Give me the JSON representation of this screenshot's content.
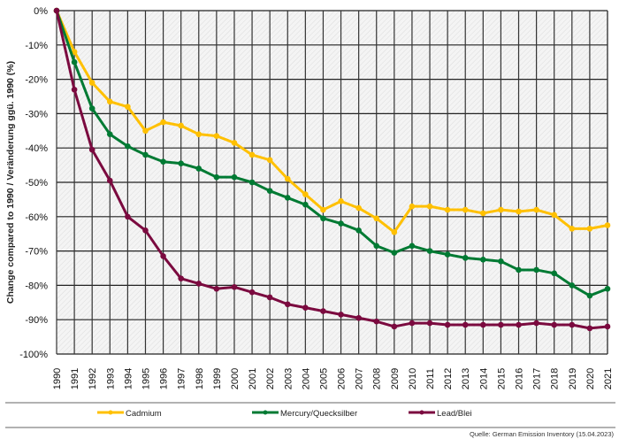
{
  "chart_data": {
    "type": "line",
    "ylabel": "Change compared to 1990 / Veränderung ggü. 1990 (%)",
    "ylim": [
      -100,
      0
    ],
    "yticks": [
      "0%",
      "-10%",
      "-20%",
      "-30%",
      "-40%",
      "-50%",
      "-60%",
      "-70%",
      "-80%",
      "-90%",
      "-100%"
    ],
    "x": [
      "1990",
      "1991",
      "1992",
      "1993",
      "1994",
      "1995",
      "1996",
      "1997",
      "1998",
      "1999",
      "2000",
      "2001",
      "2002",
      "2003",
      "2004",
      "2005",
      "2006",
      "2007",
      "2008",
      "2009",
      "2010",
      "2011",
      "2012",
      "2013",
      "2014",
      "2015",
      "2016",
      "2017",
      "2018",
      "2019",
      "2020",
      "2021"
    ],
    "grid": true,
    "legend_position": "bottom",
    "series": [
      {
        "name": "Cadmium",
        "color": "#ffc000",
        "values": [
          0,
          -12,
          -21,
          -26.5,
          -28,
          -35,
          -32.5,
          -33.5,
          -36,
          -36.5,
          -38.5,
          -42,
          -43.5,
          -49,
          -53.5,
          -58,
          -55.5,
          -57.5,
          -60.5,
          -64.5,
          -57,
          -57,
          -58,
          -58,
          -59,
          -58,
          -58.5,
          -58,
          -59.5,
          -63.5,
          -63.5,
          -62.5
        ]
      },
      {
        "name": "Mercury/Quecksilber",
        "color": "#007a33",
        "values": [
          0,
          -15,
          -28.5,
          -36,
          -39.5,
          -42,
          -44,
          -44.5,
          -46,
          -48.5,
          -48.5,
          -50,
          -52.5,
          -54.5,
          -56.5,
          -60.5,
          -62,
          -64,
          -68.5,
          -70.5,
          -68.5,
          -70,
          -71,
          -72,
          -72.5,
          -73,
          -75.5,
          -75.5,
          -76.5,
          -80,
          -83,
          -81
        ]
      },
      {
        "name": "Lead/Blei",
        "color": "#7b0a3f",
        "values": [
          0,
          -23,
          -40.5,
          -49.5,
          -60,
          -64,
          -71.5,
          -78,
          -79.5,
          -81,
          -80.5,
          -82,
          -83.5,
          -85.5,
          -86.5,
          -87.5,
          -88.5,
          -89.5,
          -90.5,
          -92,
          -91,
          -91,
          -91.5,
          -91.5,
          -91.5,
          -91.5,
          -91.5,
          -91,
          -91.5,
          -91.5,
          -92.5,
          -92
        ]
      }
    ],
    "source": "Quelle: German Emission Inventory (15.04.2023)"
  }
}
